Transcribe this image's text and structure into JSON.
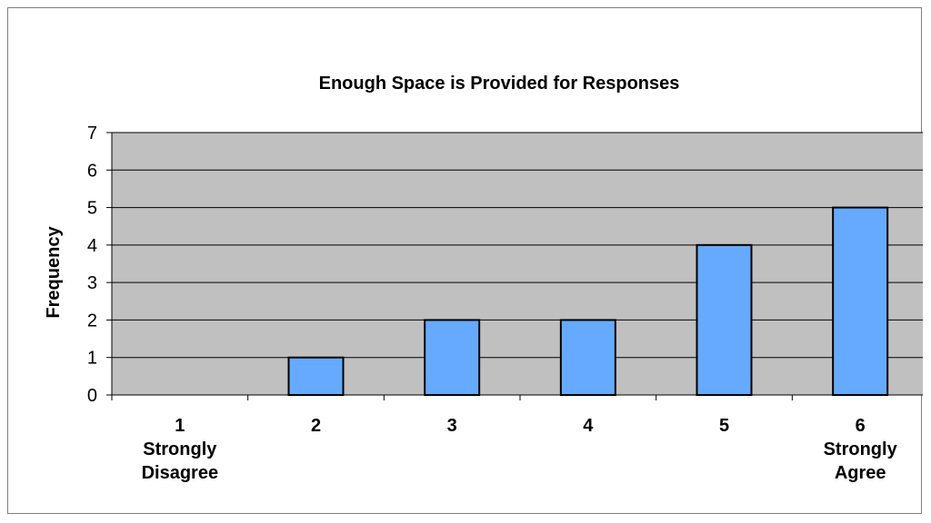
{
  "chart_data": {
    "type": "bar",
    "title": "Enough Space is Provided for Responses",
    "xlabel": "",
    "ylabel": "Frequency",
    "ylim": [
      0,
      7
    ],
    "yticks": [
      0,
      1,
      2,
      3,
      4,
      5,
      6,
      7
    ],
    "categories": [
      [
        "1",
        "Strongly",
        "Disagree"
      ],
      [
        "2"
      ],
      [
        "3"
      ],
      [
        "4"
      ],
      [
        "5"
      ],
      [
        "6",
        "Strongly",
        "Agree"
      ]
    ],
    "values": [
      0,
      1,
      2,
      2,
      4,
      5
    ],
    "grid": true,
    "legend": "none",
    "colors": {
      "bar_fill": "#66aaff",
      "bar_stroke": "#000000",
      "plot_background": "#c0c0c0",
      "gridline": "#000000"
    }
  }
}
